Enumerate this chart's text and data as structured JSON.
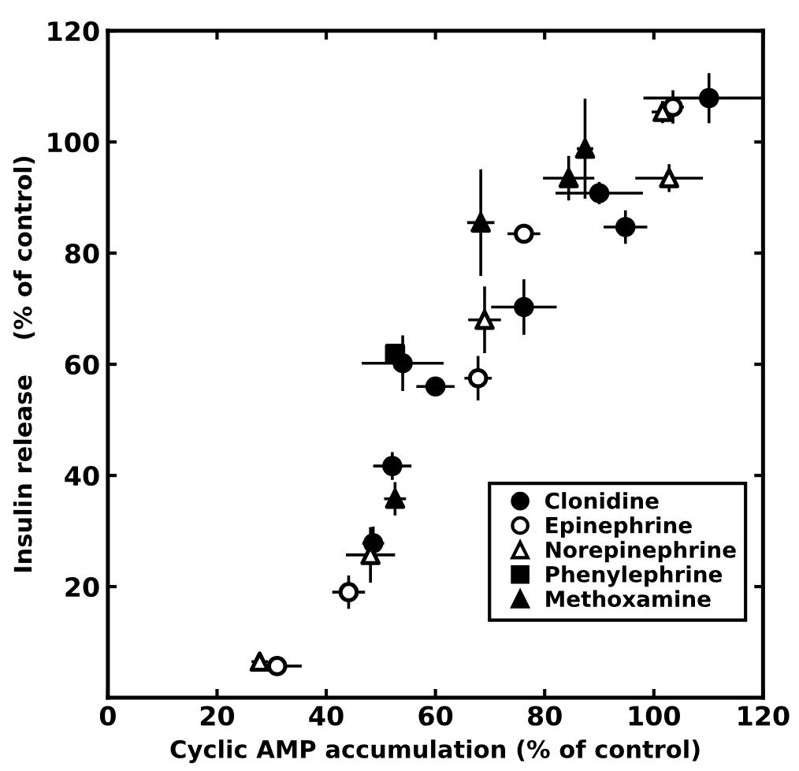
{
  "chart_data": {
    "type": "scatter",
    "xlabel": "Cyclic AMP accumulation (% of control)",
    "ylabel": "Insulin release    (% of control)",
    "xlim": [
      0,
      120
    ],
    "ylim": [
      0,
      120
    ],
    "xticks": [
      0,
      20,
      40,
      60,
      80,
      100,
      120
    ],
    "yticks": [
      20,
      40,
      60,
      80,
      100,
      120
    ],
    "grid": false,
    "legend": "bottom right",
    "series": [
      {
        "name": "Clonidine",
        "color": "#000000",
        "marker": "circle",
        "x": [
          110.1,
          90,
          94.8,
          76.2,
          60,
          54,
          52.1,
          48.6
        ],
        "values": [
          107.9,
          90.8,
          84.7,
          70.3,
          56,
          60.2,
          41.7,
          27.8
        ],
        "xerrors": [
          12,
          8,
          4,
          6,
          3.5,
          7.5,
          3.5,
          2
        ],
        "errors": [
          4.5,
          2,
          3,
          5,
          1,
          5,
          2.5,
          3
        ]
      },
      {
        "name": "Epinephrine",
        "color": "#ffffff",
        "marker": "circle",
        "x": [
          103.5,
          76.2,
          67.8,
          44.1,
          31
        ],
        "values": [
          106.3,
          83.5,
          57.5,
          19,
          5.7
        ],
        "xerrors": [
          2,
          3,
          2.5,
          3,
          4.5
        ],
        "errors": [
          3,
          1.5,
          4,
          3,
          1.5
        ]
      },
      {
        "name": "Norepinephrine",
        "color": "#ffffff",
        "marker": "triangle",
        "x": [
          27.8,
          48.1,
          69,
          101.6,
          102.8
        ],
        "values": [
          6.5,
          25.7,
          68,
          105.4,
          93.5
        ],
        "xerrors": [
          1.5,
          4.5,
          3,
          2,
          6.2
        ],
        "errors": [
          1,
          5,
          6,
          2,
          2.5
        ]
      },
      {
        "name": "Phenylephrine",
        "color": "#000000",
        "marker": "square",
        "x": [
          52.6
        ],
        "values": [
          61.9
        ],
        "xerrors": [
          1
        ],
        "errors": [
          1
        ]
      },
      {
        "name": "Methoxamine",
        "color": "#000000",
        "marker": "triangle",
        "x": [
          52.6,
          68.3,
          84.4,
          87.4
        ],
        "values": [
          35.8,
          85.5,
          93.5,
          98.8
        ],
        "xerrors": [
          2,
          2.5,
          4.7,
          1.5
        ],
        "errors": [
          3,
          9.6,
          4,
          9
        ]
      }
    ]
  }
}
